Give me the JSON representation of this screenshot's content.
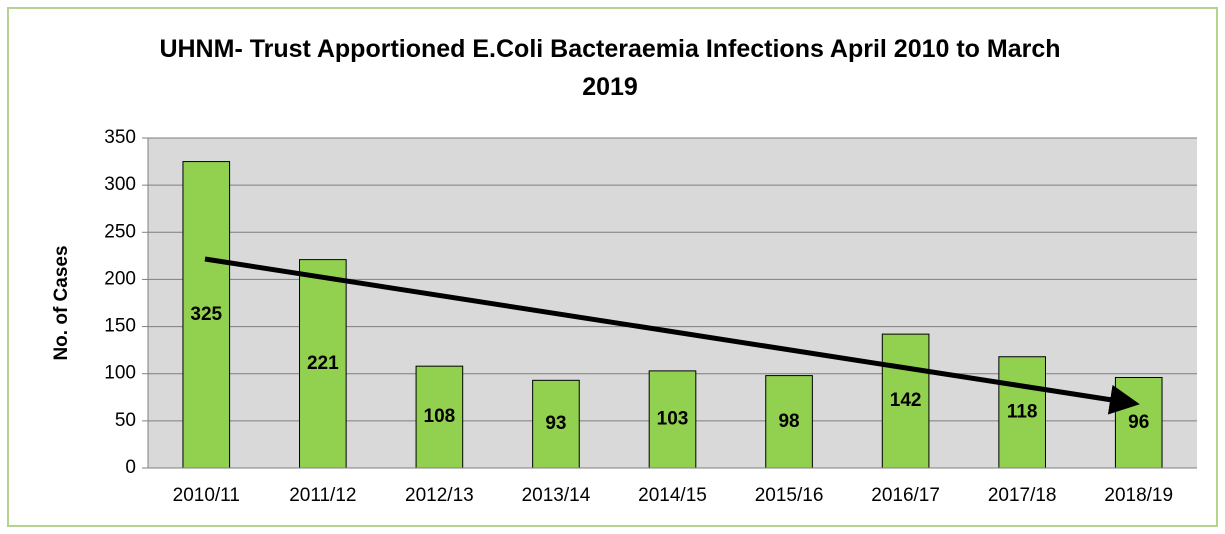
{
  "chart_data": {
    "type": "bar",
    "title": "UHNM- Trust Apportioned E.Coli Bacteraemia Infections April 2010 to March 2019",
    "y_label": "No. of Cases",
    "categories": [
      "2010/11",
      "2011/12",
      "2012/13",
      "2013/14",
      "2014/15",
      "2015/16",
      "2016/17",
      "2017/18",
      "2018/19"
    ],
    "values": [
      325,
      221,
      108,
      93,
      103,
      98,
      142,
      118,
      96
    ],
    "color": "#92d050",
    "ylim": [
      0,
      350
    ],
    "yticks": [
      0,
      50,
      100,
      150,
      200,
      250,
      300,
      350
    ],
    "grid": true
  }
}
